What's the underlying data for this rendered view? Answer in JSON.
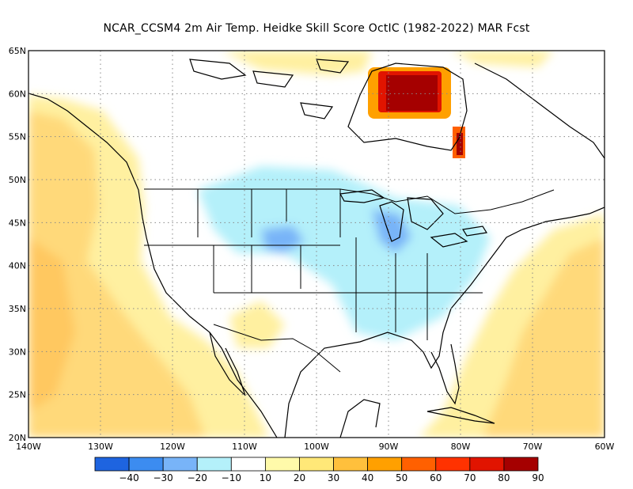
{
  "title": "NCAR_CCSM4  2m Air Temp. Heidke Skill Score OctIC (1982-2022) MAR Fcst",
  "lat_labels": [
    "65N",
    "60N",
    "55N",
    "50N",
    "45N",
    "40N",
    "35N",
    "30N",
    "25N",
    "20N"
  ],
  "lat_values": [
    65,
    60,
    55,
    50,
    45,
    40,
    35,
    30,
    25,
    20
  ],
  "lon_labels": [
    "140W",
    "130W",
    "120W",
    "110W",
    "100W",
    "90W",
    "80W",
    "70W",
    "60W"
  ],
  "lon_values": [
    -140,
    -130,
    -120,
    -110,
    -100,
    -90,
    -80,
    -70,
    -60
  ],
  "colorbar": {
    "tick_labels": [
      "-40",
      "-30",
      "-20",
      "-10",
      "10",
      "20",
      "30",
      "40",
      "50",
      "60",
      "70",
      "80",
      "90"
    ],
    "colors": [
      "#1e64e0",
      "#3c8cf0",
      "#78b4f8",
      "#b4f0fa",
      "#ffffff",
      "#fffaaa",
      "#ffe878",
      "#ffc03c",
      "#ffa000",
      "#ff6000",
      "#ff3200",
      "#e11400",
      "#a50000"
    ]
  },
  "map": {
    "extent": {
      "lon_min": -140,
      "lon_max": -60,
      "lat_min": 20,
      "lat_max": 65
    },
    "gridlines": "dotted"
  }
}
